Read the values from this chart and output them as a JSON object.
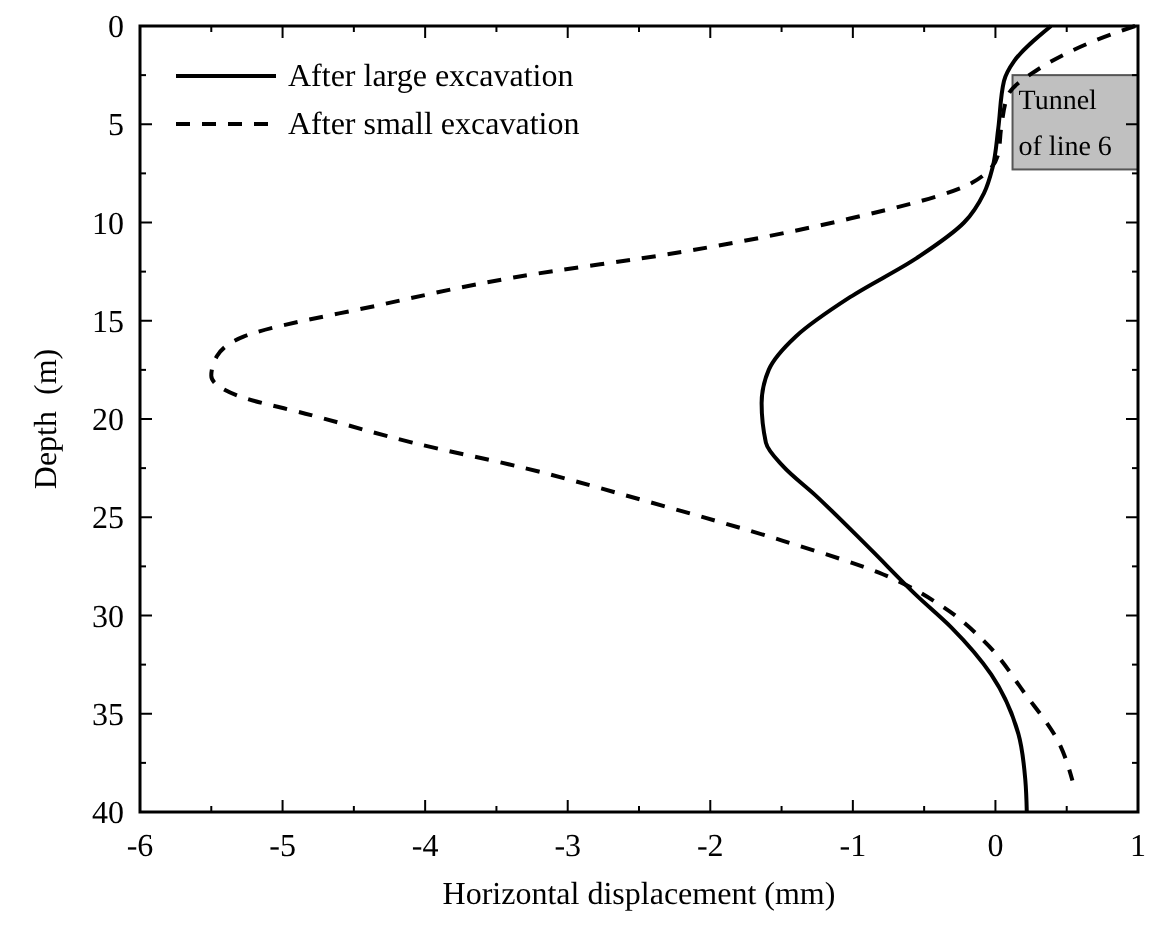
{
  "chart_data": {
    "type": "line",
    "xlabel": "Horizontal displacement (mm)",
    "ylabel": "Depth  (m)",
    "xlim": [
      -6,
      1
    ],
    "xticks": [
      -6,
      -5,
      -4,
      -3,
      -2,
      -1,
      0,
      1
    ],
    "ylim": [
      40,
      0
    ],
    "yticks": [
      0,
      5,
      10,
      15,
      20,
      25,
      30,
      35,
      40
    ],
    "grid": false,
    "legend": "top left",
    "annotations": [
      "Tunnel of line 6"
    ],
    "series": [
      {
        "name": "After large excavation",
        "color": "#000000",
        "line_style": "solid",
        "x": [
          0.39,
          0.13,
          0.06,
          0.02,
          -0.02,
          -0.08,
          -0.22,
          -0.55,
          -1.02,
          -1.4,
          -1.59,
          -1.64,
          -1.61,
          -1.49,
          -1.26,
          -0.88,
          -0.55,
          -0.31,
          -0.03,
          0.16,
          0.21,
          0.22
        ],
        "values": [
          0,
          1.8,
          2.8,
          5.2,
          7.2,
          8.5,
          10,
          11.8,
          13.8,
          15.8,
          17.5,
          19.2,
          21.2,
          22.4,
          23.9,
          26.6,
          29,
          30.6,
          33,
          36,
          38.4,
          40
        ]
      },
      {
        "name": "After small excavation",
        "color": "#000000",
        "line_style": "dashed",
        "x": [
          0.98,
          0.68,
          0.3,
          0.09,
          0.04,
          0.02,
          -0.17,
          -1.02,
          -2.2,
          -3.38,
          -4.32,
          -5.27,
          -5.46,
          -5.5,
          -5.32,
          -4.8,
          -4.09,
          -3.3,
          -2.44,
          -1.49,
          -0.79,
          -0.36,
          -0.08,
          0.21,
          0.44,
          0.54
        ],
        "values": [
          0,
          0.8,
          2.2,
          3.5,
          5.2,
          6.5,
          8,
          9.8,
          11.5,
          12.8,
          14.2,
          15.8,
          16.8,
          17.8,
          18.8,
          19.8,
          21.2,
          22.5,
          24.2,
          26.2,
          27.9,
          29.6,
          31.3,
          34,
          36.4,
          38.4
        ]
      }
    ]
  }
}
